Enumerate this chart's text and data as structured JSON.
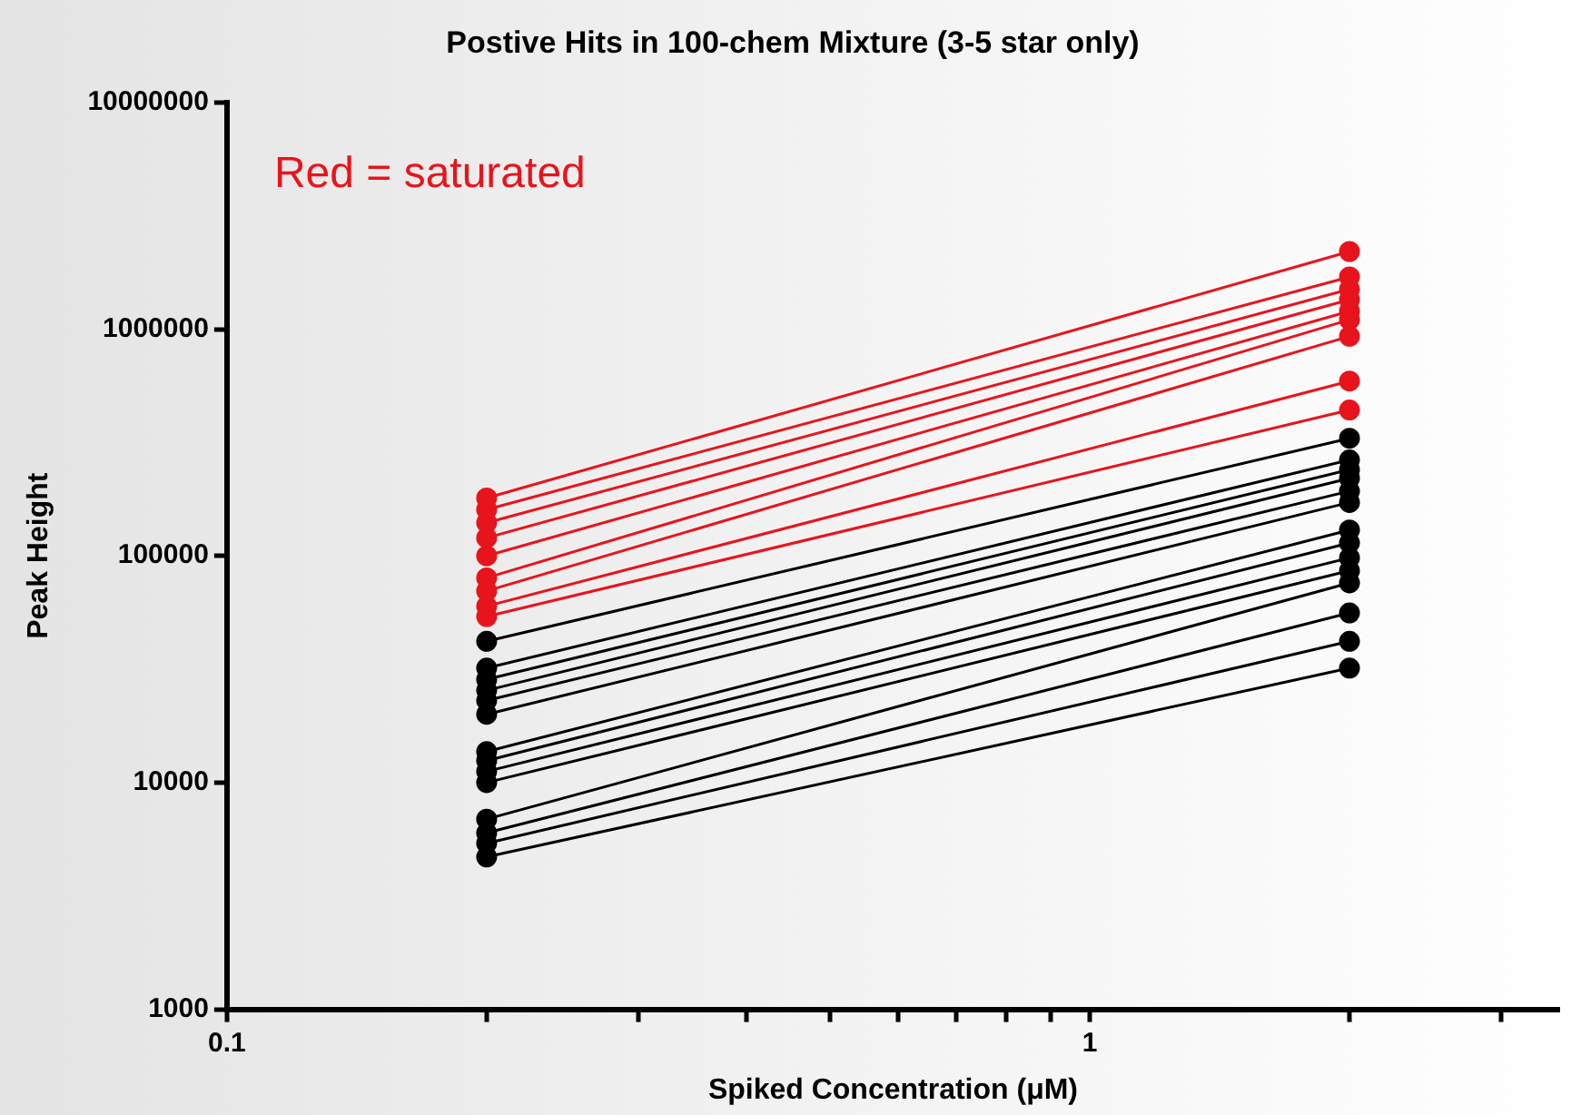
{
  "chart_data": {
    "type": "line",
    "title": "Postive Hits in 100-chem Mixture (3-5 star only)",
    "xlabel": "Spiked Concentration (μM)",
    "ylabel": "Peak Height",
    "annotations": [
      "Red = saturated"
    ],
    "log": "xy",
    "grid": false,
    "legend": false,
    "marker": "circle",
    "line_style": "solid",
    "x": [
      0.2,
      2
    ],
    "xlim": [
      0.1,
      3.5
    ],
    "xticks": [
      0.1,
      {
        "value": 0.2,
        "label": null
      },
      {
        "value": 0.3,
        "label": null
      },
      {
        "value": 0.4,
        "label": null
      },
      {
        "value": 0.5,
        "label": null
      },
      {
        "value": 0.6,
        "label": null
      },
      {
        "value": 0.7,
        "label": null
      },
      {
        "value": 0.8,
        "label": null
      },
      {
        "value": 0.9,
        "label": null
      },
      1,
      {
        "value": 2,
        "label": null
      },
      {
        "value": 3,
        "label": null
      }
    ],
    "ylim": [
      1000,
      10000000
    ],
    "yticks": [
      1000,
      10000,
      100000,
      1000000,
      10000000
    ],
    "series": [
      {
        "color": "#e8141c",
        "values": [
          180000,
          2200000
        ]
      },
      {
        "color": "#e8141c",
        "values": [
          160000,
          1700000
        ]
      },
      {
        "color": "#e8141c",
        "values": [
          140000,
          1500000
        ]
      },
      {
        "color": "#e8141c",
        "values": [
          120000,
          1350000
        ]
      },
      {
        "color": "#e8141c",
        "values": [
          100000,
          1200000
        ]
      },
      {
        "color": "#e8141c",
        "values": [
          80000,
          1100000
        ]
      },
      {
        "color": "#e8141c",
        "values": [
          70000,
          930000
        ]
      },
      {
        "color": "#e8141c",
        "values": [
          60000,
          590000
        ]
      },
      {
        "color": "#e8141c",
        "values": [
          54000,
          440000
        ]
      },
      {
        "color": "#000000",
        "values": [
          42000,
          330000
        ]
      },
      {
        "color": "#000000",
        "values": [
          32000,
          265000
        ]
      },
      {
        "color": "#000000",
        "values": [
          28500,
          240000
        ]
      },
      {
        "color": "#000000",
        "values": [
          25500,
          220000
        ]
      },
      {
        "color": "#000000",
        "values": [
          23000,
          193000
        ]
      },
      {
        "color": "#000000",
        "values": [
          20000,
          172000
        ]
      },
      {
        "color": "#000000",
        "values": [
          13700,
          130000
        ]
      },
      {
        "color": "#000000",
        "values": [
          12500,
          114000
        ]
      },
      {
        "color": "#000000",
        "values": [
          11200,
          98000
        ]
      },
      {
        "color": "#000000",
        "values": [
          10000,
          86000
        ]
      },
      {
        "color": "#000000",
        "values": [
          6900,
          76000
        ]
      },
      {
        "color": "#000000",
        "values": [
          6000,
          56000
        ]
      },
      {
        "color": "#000000",
        "values": [
          5400,
          42000
        ]
      },
      {
        "color": "#000000",
        "values": [
          4700,
          32000
        ]
      }
    ]
  }
}
